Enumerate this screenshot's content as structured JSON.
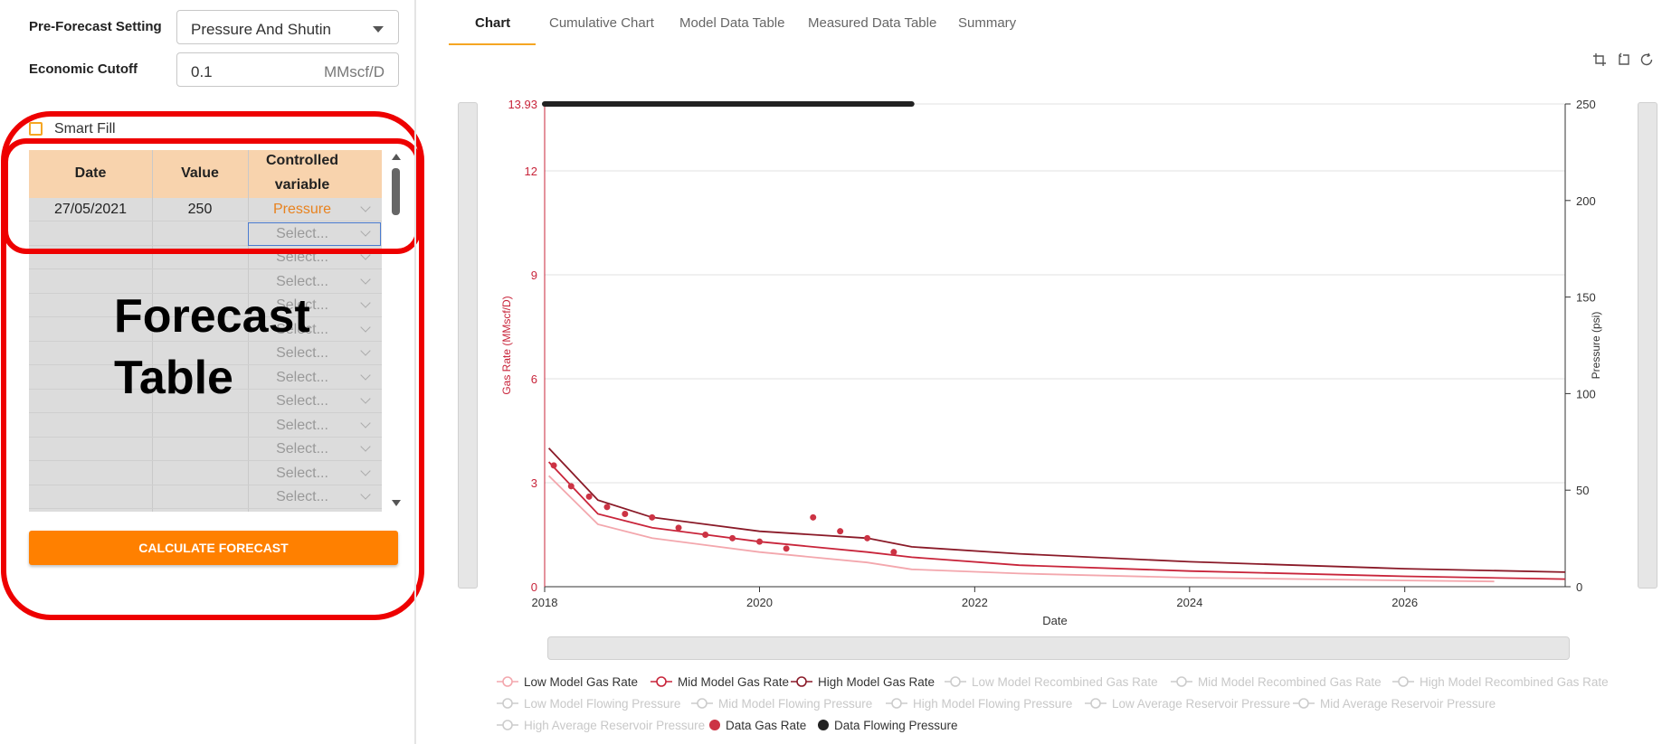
{
  "form": {
    "pre_forecast_label": "Pre-Forecast Setting",
    "pre_forecast_value": "Pressure And Shutin",
    "economic_cutoff_label": "Economic Cutoff",
    "economic_cutoff_value": "0.1",
    "economic_cutoff_unit": "MMscf/D",
    "smart_fill_label": "Smart Fill"
  },
  "table": {
    "headers": [
      "Date",
      "Value",
      "Controlled",
      "variable"
    ],
    "rows": [
      {
        "date": "27/05/2021",
        "value": "250",
        "variable": "Pressure"
      },
      {
        "date": "",
        "value": "",
        "variable": "Select..."
      },
      {
        "date": "",
        "value": "",
        "variable": "Select..."
      },
      {
        "date": "",
        "value": "",
        "variable": "Select..."
      },
      {
        "date": "",
        "value": "",
        "variable": "Select..."
      },
      {
        "date": "",
        "value": "",
        "variable": "Select..."
      },
      {
        "date": "",
        "value": "",
        "variable": "Select..."
      },
      {
        "date": "",
        "value": "",
        "variable": "Select..."
      },
      {
        "date": "",
        "value": "",
        "variable": "Select..."
      },
      {
        "date": "",
        "value": "",
        "variable": "Select..."
      },
      {
        "date": "",
        "value": "",
        "variable": "Select..."
      },
      {
        "date": "",
        "value": "",
        "variable": "Select..."
      },
      {
        "date": "",
        "value": "",
        "variable": "Select..."
      }
    ]
  },
  "calculate_button": "CALCULATE FORECAST",
  "annotation": {
    "line1": "Forecast",
    "line2": "Table"
  },
  "tabs": [
    "Chart",
    "Cumulative Chart",
    "Model Data Table",
    "Measured Data Table",
    "Summary"
  ],
  "active_tab": "Chart",
  "toolbar_icons": [
    "zoom-select-icon",
    "zoom-reset-icon",
    "restore-icon"
  ],
  "colors": {
    "accent": "#ff8000",
    "low_model": "#f3a7ad",
    "mid_model": "#c8243a",
    "high_model": "#8a1a28",
    "data_gas": "#cc3344",
    "data_pressure": "#222222",
    "annotation_red": "#ee0000"
  },
  "chart_data": {
    "type": "line",
    "xlabel": "Date",
    "ylabel_left": "Gas Rate (MMscf/D)",
    "ylabel_right": "Pressure (psi)",
    "x_ticks": [
      "2018",
      "2020",
      "2022",
      "2024",
      "2026"
    ],
    "x_range": [
      "2018-01-01",
      "2027-06-30"
    ],
    "y_left_ticks": [
      "0",
      "3",
      "6",
      "9",
      "12",
      "13.93"
    ],
    "y_left_range": [
      0,
      13.93
    ],
    "y_right_ticks": [
      "0",
      "50",
      "100",
      "150",
      "200",
      "250"
    ],
    "y_right_range": [
      0,
      250
    ],
    "grid": true,
    "legend_position": "bottom",
    "series": [
      {
        "name": "Low Model Gas Rate",
        "active": true,
        "x": [
          "2018-01-15",
          "2018-07-01",
          "2019-01-01",
          "2020-01-01",
          "2021-01-01",
          "2021-06-01",
          "2022-06-01",
          "2024-01-01",
          "2026-01-01",
          "2026-11-01"
        ],
        "y": [
          3.2,
          1.8,
          1.4,
          1.0,
          0.7,
          0.5,
          0.38,
          0.26,
          0.18,
          0.15
        ]
      },
      {
        "name": "Mid Model Gas Rate",
        "active": true,
        "x": [
          "2018-01-15",
          "2018-07-01",
          "2019-01-01",
          "2020-01-01",
          "2021-01-01",
          "2021-06-01",
          "2022-06-01",
          "2024-01-01",
          "2026-01-01",
          "2027-06-30"
        ],
        "y": [
          3.6,
          2.1,
          1.7,
          1.3,
          1.0,
          0.85,
          0.62,
          0.45,
          0.3,
          0.22
        ]
      },
      {
        "name": "High Model Gas Rate",
        "active": true,
        "x": [
          "2018-01-15",
          "2018-07-01",
          "2019-01-01",
          "2020-01-01",
          "2021-01-01",
          "2021-06-01",
          "2022-06-01",
          "2024-01-01",
          "2026-01-01",
          "2027-06-30"
        ],
        "y": [
          4.0,
          2.5,
          2.0,
          1.6,
          1.4,
          1.15,
          0.95,
          0.72,
          0.52,
          0.42
        ]
      },
      {
        "name": "Low Model Recombined Gas Rate",
        "active": false
      },
      {
        "name": "Mid Model Recombined Gas Rate",
        "active": false
      },
      {
        "name": "High Model Recombined Gas Rate",
        "active": false
      },
      {
        "name": "Low Model Flowing Pressure",
        "active": false
      },
      {
        "name": "Mid Model Flowing Pressure",
        "active": false
      },
      {
        "name": "High Model Flowing Pressure",
        "active": false
      },
      {
        "name": "Low Average Reservoir Pressure",
        "active": false
      },
      {
        "name": "Mid Average Reservoir Pressure",
        "active": false
      },
      {
        "name": "High Average Reservoir Pressure",
        "active": false
      },
      {
        "name": "Data Gas Rate",
        "active": true,
        "marker": "dot",
        "x": [
          "2018-02-01",
          "2018-04-01",
          "2018-06-01",
          "2018-08-01",
          "2018-10-01",
          "2019-01-01",
          "2019-04-01",
          "2019-07-01",
          "2019-10-01",
          "2020-01-01",
          "2020-04-01",
          "2020-07-01",
          "2020-10-01",
          "2021-01-01",
          "2021-04-01"
        ],
        "y": [
          3.5,
          2.9,
          2.6,
          2.3,
          2.1,
          2.0,
          1.7,
          1.5,
          1.4,
          1.3,
          1.1,
          2.0,
          1.6,
          1.4,
          1.0
        ]
      },
      {
        "name": "Data Flowing Pressure",
        "active": true,
        "marker": "dot",
        "x": [
          "2018-01-01",
          "2021-06-01"
        ],
        "y": [
          250,
          250
        ]
      }
    ]
  }
}
